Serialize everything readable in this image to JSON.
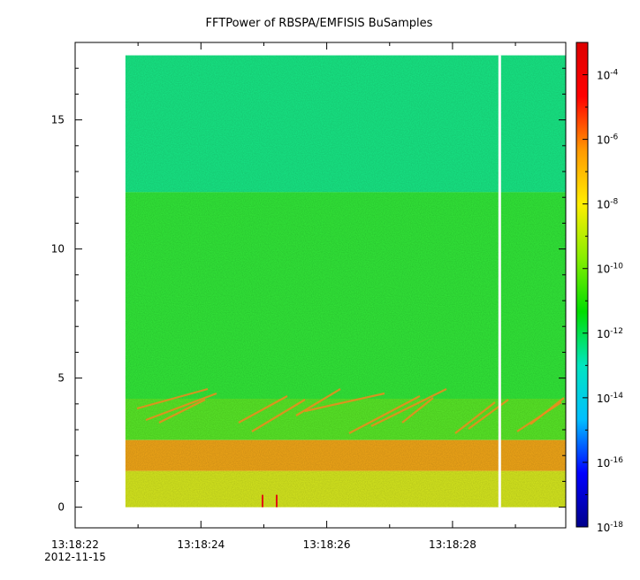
{
  "chart_data": {
    "type": "heatmap",
    "title": "FFTPower of RBSPA/EMFISIS  BuSamples",
    "xlabel": "",
    "ylabel": "",
    "x_axis": {
      "type": "time",
      "date": "2012-11-15",
      "range_seconds_after_13_18_22": [
        0,
        7.8
      ],
      "major_ticks": [
        {
          "time": "13:18:22",
          "label": "13:18:22",
          "sublabel": "2012-11-15"
        },
        {
          "time": "13:18:24",
          "label": "13:18:24"
        },
        {
          "time": "13:18:26",
          "label": "13:18:26"
        },
        {
          "time": "13:18:28",
          "label": "13:18:28"
        }
      ]
    },
    "y_axis": {
      "range": [
        -0.8,
        18.0
      ],
      "ticks": [
        0,
        5,
        10,
        15
      ],
      "tick_labels": [
        "0",
        "5",
        "10",
        "15"
      ]
    },
    "data_extent": {
      "t_start": "13:18:22.8",
      "t_end": "13:18:29.8",
      "y_min": 0,
      "y_max": 17.5
    },
    "data_gap": {
      "time": "13:18:28.75"
    },
    "colorbar": {
      "scale": "log",
      "range": [
        "1e-18",
        "1e-3"
      ],
      "ticks": [
        {
          "base": "10",
          "exp": "-4",
          "value": 0.0001
        },
        {
          "base": "10",
          "exp": "-6",
          "value": 1e-06
        },
        {
          "base": "10",
          "exp": "-8",
          "value": 1e-08
        },
        {
          "base": "10",
          "exp": "-10",
          "value": 1e-10
        },
        {
          "base": "10",
          "exp": "-12",
          "value": 1e-12
        },
        {
          "base": "10",
          "exp": "-14",
          "value": 1e-14
        },
        {
          "base": "10",
          "exp": "-16",
          "value": 1e-16
        },
        {
          "base": "10",
          "exp": "-18",
          "value": 1e-18
        }
      ],
      "colors": [
        "#00008b",
        "#0000ff",
        "#00bfff",
        "#00e5c0",
        "#00dd00",
        "#88ee00",
        "#ffee00",
        "#ff9900",
        "#ff0000",
        "#dd0000"
      ]
    },
    "intensity_bands": [
      {
        "y_from": 12.2,
        "y_to": 17.5,
        "level": "1e-12",
        "color": "#1de886"
      },
      {
        "y_from": 4.2,
        "y_to": 12.2,
        "level": "1e-10",
        "color": "#35e83a"
      },
      {
        "y_from": 2.6,
        "y_to": 4.2,
        "level": "1e-10",
        "color": "#5ae82c"
      },
      {
        "y_from": 1.4,
        "y_to": 2.6,
        "level": "1e-8",
        "color": "#f2a71d"
      },
      {
        "y_from": 0.0,
        "y_to": 1.4,
        "level": "1e-9",
        "color": "#d7e820"
      }
    ]
  }
}
